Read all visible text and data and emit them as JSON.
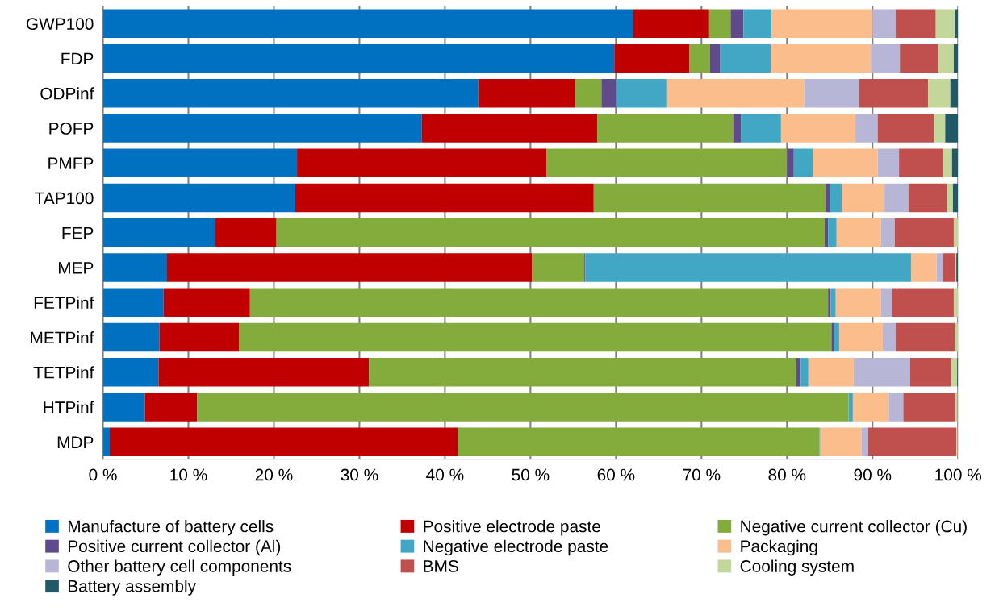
{
  "chart_data": {
    "type": "bar",
    "orientation": "horizontal",
    "stacked": true,
    "categories": [
      "GWP100",
      "FDP",
      "ODPinf",
      "POFP",
      "PMFP",
      "TAP100",
      "FEP",
      "MEP",
      "FETPinf",
      "METPinf",
      "TETPinf",
      "HTPinf",
      "MDP"
    ],
    "series": [
      {
        "name": "Manufacture of battery cells",
        "color": "#0070c0",
        "values": [
          62.0,
          59.8,
          43.9,
          37.3,
          22.7,
          22.5,
          13.1,
          7.5,
          7.1,
          6.6,
          6.5,
          4.9,
          0.8
        ]
      },
      {
        "name": "Positive electrode paste",
        "color": "#c00000",
        "values": [
          8.9,
          8.8,
          11.3,
          20.5,
          29.2,
          34.9,
          7.2,
          42.7,
          10.1,
          9.3,
          24.6,
          6.1,
          40.7
        ]
      },
      {
        "name": "Negative current collector (Cu)",
        "color": "#84ac3c",
        "values": [
          2.5,
          2.4,
          3.1,
          15.9,
          28.1,
          27.1,
          64.1,
          6.1,
          67.6,
          69.3,
          50.0,
          76.2,
          42.3
        ]
      },
      {
        "name": "Positive current collector (Al)",
        "color": "#5f4b8b",
        "values": [
          1.5,
          1.2,
          1.7,
          0.9,
          0.8,
          0.5,
          0.4,
          0.1,
          0.3,
          0.3,
          0.5,
          null,
          null
        ]
      },
      {
        "name": "Negative electrode paste",
        "color": "#41a7c4",
        "values": [
          3.3,
          5.9,
          5.9,
          4.7,
          2.2,
          1.4,
          1.0,
          38.1,
          0.6,
          0.6,
          0.9,
          0.5,
          0.1
        ]
      },
      {
        "name": "Packaging",
        "color": "#fbbd8c",
        "values": [
          11.8,
          11.7,
          16.1,
          8.7,
          7.6,
          5.0,
          5.2,
          3.0,
          5.3,
          5.1,
          5.3,
          4.2,
          4.8
        ]
      },
      {
        "name": "Other battery cell components",
        "color": "#b8b6d6",
        "values": [
          2.7,
          3.4,
          6.4,
          2.6,
          2.5,
          2.8,
          1.6,
          0.7,
          1.3,
          1.5,
          6.6,
          1.7,
          0.8
        ]
      },
      {
        "name": "BMS",
        "color": "#c0504d",
        "values": [
          4.7,
          4.5,
          8.1,
          6.6,
          5.1,
          4.5,
          6.9,
          1.5,
          7.2,
          6.9,
          4.8,
          6.1,
          10.3
        ]
      },
      {
        "name": "Cooling system",
        "color": "#c4d79b",
        "values": [
          2.2,
          1.8,
          2.6,
          1.3,
          1.1,
          0.7,
          0.5,
          0.1,
          0.5,
          0.4,
          0.7,
          0.2,
          0.1
        ]
      },
      {
        "name": "Battery assembly",
        "color": "#215968",
        "values": [
          0.4,
          0.5,
          0.9,
          1.5,
          0.7,
          0.6,
          0.0,
          0.2,
          0.0,
          0.0,
          0.1,
          0.0,
          0.0
        ]
      }
    ],
    "xlim": [
      0,
      100
    ],
    "xticks": [
      {
        "value": 0,
        "label": "0 %"
      },
      {
        "value": 10,
        "label": "10 %"
      },
      {
        "value": 20,
        "label": "20 %"
      },
      {
        "value": 30,
        "label": "30 %"
      },
      {
        "value": 40,
        "label": "40 %"
      },
      {
        "value": 50,
        "label": "50 %"
      },
      {
        "value": 60,
        "label": "60 %"
      },
      {
        "value": 70,
        "label": "70 %"
      },
      {
        "value": 80,
        "label": "80 %"
      },
      {
        "value": 90,
        "label": "90 %"
      },
      {
        "value": 100,
        "label": "100 %"
      }
    ],
    "grid": "x",
    "legend": "bottom"
  }
}
